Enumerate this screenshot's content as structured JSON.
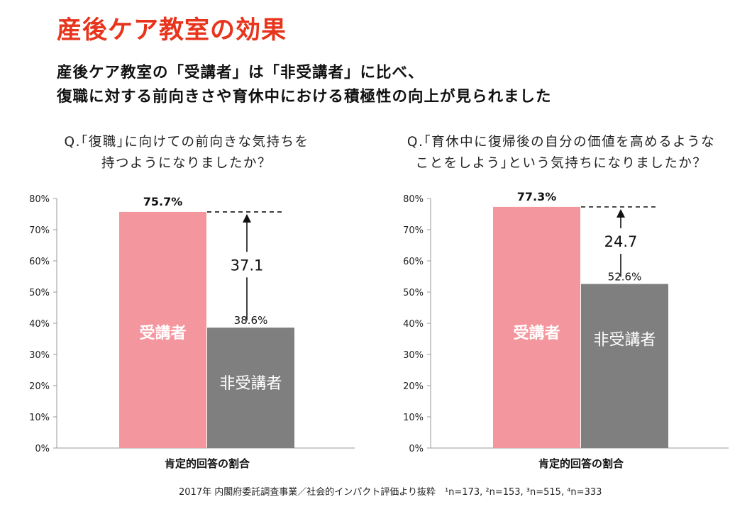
{
  "page": {
    "title": "産後ケア教室の効果",
    "subtitle_line1": "産後ケア教室の「受講者」は「非受講者」に比べ、",
    "subtitle_line2": "復職に対する前向きさや育休中における積極性の向上が見られました",
    "source": "2017年 内閣府委託調査事業／社会的インパクト評価より抜粋　¹n=173, ²n=153, ³n=515, ⁴n=333"
  },
  "questions": [
    {
      "line1": "Q.｢復職｣に向けての前向きな気持ちを",
      "line2": "持つようになりましたか？"
    },
    {
      "line1": "Q.｢育休中に復帰後の自分の価値を高めるような",
      "line2": "ことをしよう｣という気持ちになりましたか？"
    }
  ],
  "chart_data": [
    {
      "type": "bar",
      "categories": [
        "肯定的回答の割合"
      ],
      "series": [
        {
          "name": "受講者",
          "values": [
            75.7
          ],
          "color": "#f4969e"
        },
        {
          "name": "非受講者",
          "values": [
            38.6
          ],
          "color": "#7f7f7f"
        }
      ],
      "data_labels": [
        "75.7%",
        "38.6%"
      ],
      "difference": 37.1,
      "difference_label": "37.1",
      "xlabel": "肯定的回答の割合",
      "ylabel": "",
      "ylim": [
        0,
        80
      ],
      "yticks": [
        "0%",
        "10%",
        "20%",
        "30%",
        "40%",
        "50%",
        "60%",
        "70%",
        "80%"
      ]
    },
    {
      "type": "bar",
      "categories": [
        "肯定的回答の割合"
      ],
      "series": [
        {
          "name": "受講者",
          "values": [
            77.3
          ],
          "color": "#f4969e"
        },
        {
          "name": "非受講者",
          "values": [
            52.6
          ],
          "color": "#7f7f7f"
        }
      ],
      "data_labels": [
        "77.3%",
        "52.6%"
      ],
      "difference": 24.7,
      "difference_label": "24.7",
      "xlabel": "肯定的回答の割合",
      "ylabel": "",
      "ylim": [
        0,
        80
      ],
      "yticks": [
        "0%",
        "10%",
        "20%",
        "30%",
        "40%",
        "50%",
        "60%",
        "70%",
        "80%"
      ]
    }
  ]
}
